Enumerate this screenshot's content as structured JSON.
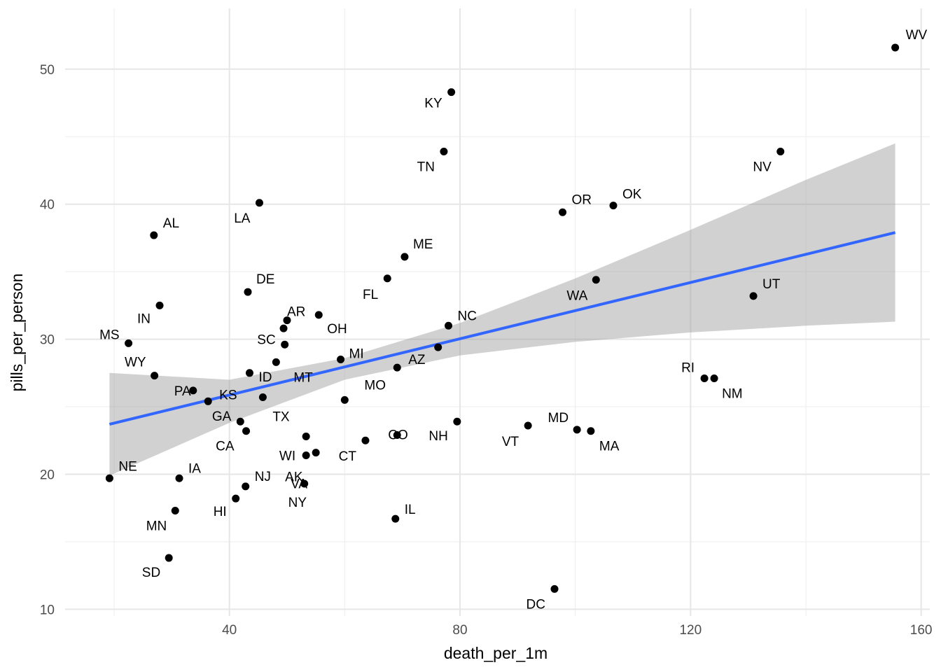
{
  "chart_data": {
    "type": "scatter",
    "title": "",
    "xlabel": "death_per_1m",
    "ylabel": "pills_per_person",
    "xlim": [
      11.5,
      161.5
    ],
    "ylim": [
      9.5,
      54.5
    ],
    "x_ticks": [
      40,
      80,
      120,
      160
    ],
    "y_ticks": [
      10,
      20,
      30,
      40,
      50
    ],
    "grid": true,
    "legend": "none",
    "colors": {
      "points": "#000000",
      "fit_line": "#3366ff",
      "band": "#999999"
    },
    "points": [
      {
        "label": "WV",
        "x": 155.5,
        "y": 51.6
      },
      {
        "label": "KY",
        "x": 78.5,
        "y": 48.3
      },
      {
        "label": "TN",
        "x": 77.2,
        "y": 43.9
      },
      {
        "label": "NV",
        "x": 135.6,
        "y": 43.9
      },
      {
        "label": "LA",
        "x": 45.2,
        "y": 40.1
      },
      {
        "label": "OK",
        "x": 106.6,
        "y": 39.9
      },
      {
        "label": "OR",
        "x": 97.8,
        "y": 39.4
      },
      {
        "label": "AL",
        "x": 26.9,
        "y": 37.7
      },
      {
        "label": "ME",
        "x": 70.4,
        "y": 36.1
      },
      {
        "label": "FL",
        "x": 67.4,
        "y": 34.5
      },
      {
        "label": "WA",
        "x": 103.6,
        "y": 34.4
      },
      {
        "label": "DE",
        "x": 43.2,
        "y": 33.5
      },
      {
        "label": "UT",
        "x": 130.9,
        "y": 33.2
      },
      {
        "label": "IN",
        "x": 27.9,
        "y": 32.5
      },
      {
        "label": "AR",
        "x": 50.0,
        "y": 31.4
      },
      {
        "label": "OH",
        "x": 55.5,
        "y": 31.8
      },
      {
        "label": "NC",
        "x": 78.0,
        "y": 31.0
      },
      {
        "label": "",
        "x": 49.4,
        "y": 30.8
      },
      {
        "label": "MS",
        "x": 22.5,
        "y": 29.7
      },
      {
        "label": "SC",
        "x": 49.6,
        "y": 29.6
      },
      {
        "label": "",
        "x": 76.2,
        "y": 29.4
      },
      {
        "label": "MT",
        "x": 48.1,
        "y": 28.3
      },
      {
        "label": "MI",
        "x": 59.3,
        "y": 28.5
      },
      {
        "label": "AZ",
        "x": 69.1,
        "y": 27.9
      },
      {
        "label": "ID",
        "x": 43.5,
        "y": 27.5
      },
      {
        "label": "WY",
        "x": 27.0,
        "y": 27.3
      },
      {
        "label": "RI",
        "x": 122.4,
        "y": 27.1
      },
      {
        "label": "NM",
        "x": 124.1,
        "y": 27.1
      },
      {
        "label": "PA",
        "x": 33.7,
        "y": 26.2
      },
      {
        "label": "MO",
        "x": 45.8,
        "y": 25.7
      },
      {
        "label": "KS",
        "x": 36.3,
        "y": 25.4
      },
      {
        "label": "TX",
        "x": 60.0,
        "y": 25.5
      },
      {
        "label": "GA",
        "x": 41.9,
        "y": 23.9
      },
      {
        "label": "NH",
        "x": 79.5,
        "y": 23.9
      },
      {
        "label": "VT",
        "x": 91.8,
        "y": 23.6
      },
      {
        "label": "MD",
        "x": 100.3,
        "y": 23.3
      },
      {
        "label": "MA",
        "x": 102.7,
        "y": 23.2
      },
      {
        "label": "CA",
        "x": 42.9,
        "y": 23.2
      },
      {
        "label": "CO",
        "x": 69.1,
        "y": 22.9
      },
      {
        "label": "WI",
        "x": 53.3,
        "y": 22.8
      },
      {
        "label": "CT",
        "x": 63.6,
        "y": 22.5
      },
      {
        "label": "AK",
        "x": 55.0,
        "y": 21.6
      },
      {
        "label": "VA",
        "x": 53.3,
        "y": 21.4
      },
      {
        "label": "NE",
        "x": 19.2,
        "y": 19.7
      },
      {
        "label": "IA",
        "x": 31.3,
        "y": 19.7
      },
      {
        "label": "NY",
        "x": 53.0,
        "y": 19.3
      },
      {
        "label": "NJ",
        "x": 42.8,
        "y": 19.1
      },
      {
        "label": "HI",
        "x": 41.1,
        "y": 18.2
      },
      {
        "label": "MN",
        "x": 30.6,
        "y": 17.3
      },
      {
        "label": "IL",
        "x": 68.8,
        "y": 16.7
      },
      {
        "label": "SD",
        "x": 29.5,
        "y": 13.8
      },
      {
        "label": "DC",
        "x": 96.4,
        "y": 11.5
      }
    ],
    "fit_line": {
      "x": [
        19.2,
        155.5
      ],
      "y": [
        23.7,
        37.9
      ]
    },
    "confidence_band": {
      "x": [
        19.2,
        40,
        60,
        80,
        100,
        120,
        140,
        155.5
      ],
      "lower": [
        19.9,
        23.8,
        27.0,
        28.8,
        29.8,
        30.5,
        31.0,
        31.3
      ],
      "upper": [
        27.5,
        27.0,
        28.6,
        31.2,
        34.5,
        38.1,
        41.8,
        44.5
      ]
    }
  }
}
